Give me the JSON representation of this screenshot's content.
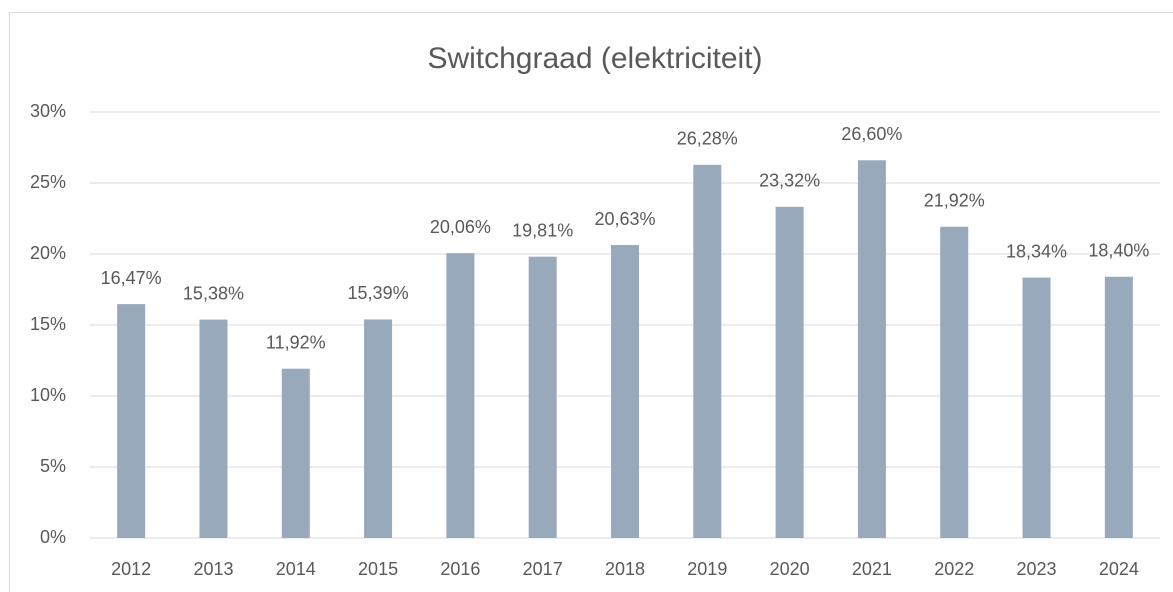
{
  "chart_data": {
    "type": "bar",
    "title": "Switchgraad (elektriciteit)",
    "categories": [
      "2012",
      "2013",
      "2014",
      "2015",
      "2016",
      "2017",
      "2018",
      "2019",
      "2020",
      "2021",
      "2022",
      "2023",
      "2024"
    ],
    "values": [
      16.47,
      15.38,
      11.92,
      15.39,
      20.06,
      19.81,
      20.63,
      26.28,
      23.32,
      26.6,
      21.92,
      18.34,
      18.4
    ],
    "value_labels": [
      "16,47%",
      "15,38%",
      "11,92%",
      "15,39%",
      "20,06%",
      "19,81%",
      "20,63%",
      "26,28%",
      "23,32%",
      "26,60%",
      "21,92%",
      "18,34%",
      "18,40%"
    ],
    "color": "#97a9ba",
    "ylim": [
      0,
      30
    ],
    "yticks": [
      {
        "value": 0,
        "label": "0%"
      },
      {
        "value": 5,
        "label": "5%"
      },
      {
        "value": 10,
        "label": "10%"
      },
      {
        "value": 15,
        "label": "15%"
      },
      {
        "value": 20,
        "label": "20%"
      },
      {
        "value": 25,
        "label": "25%"
      },
      {
        "value": 30,
        "label": "30%"
      }
    ],
    "grid": true
  }
}
